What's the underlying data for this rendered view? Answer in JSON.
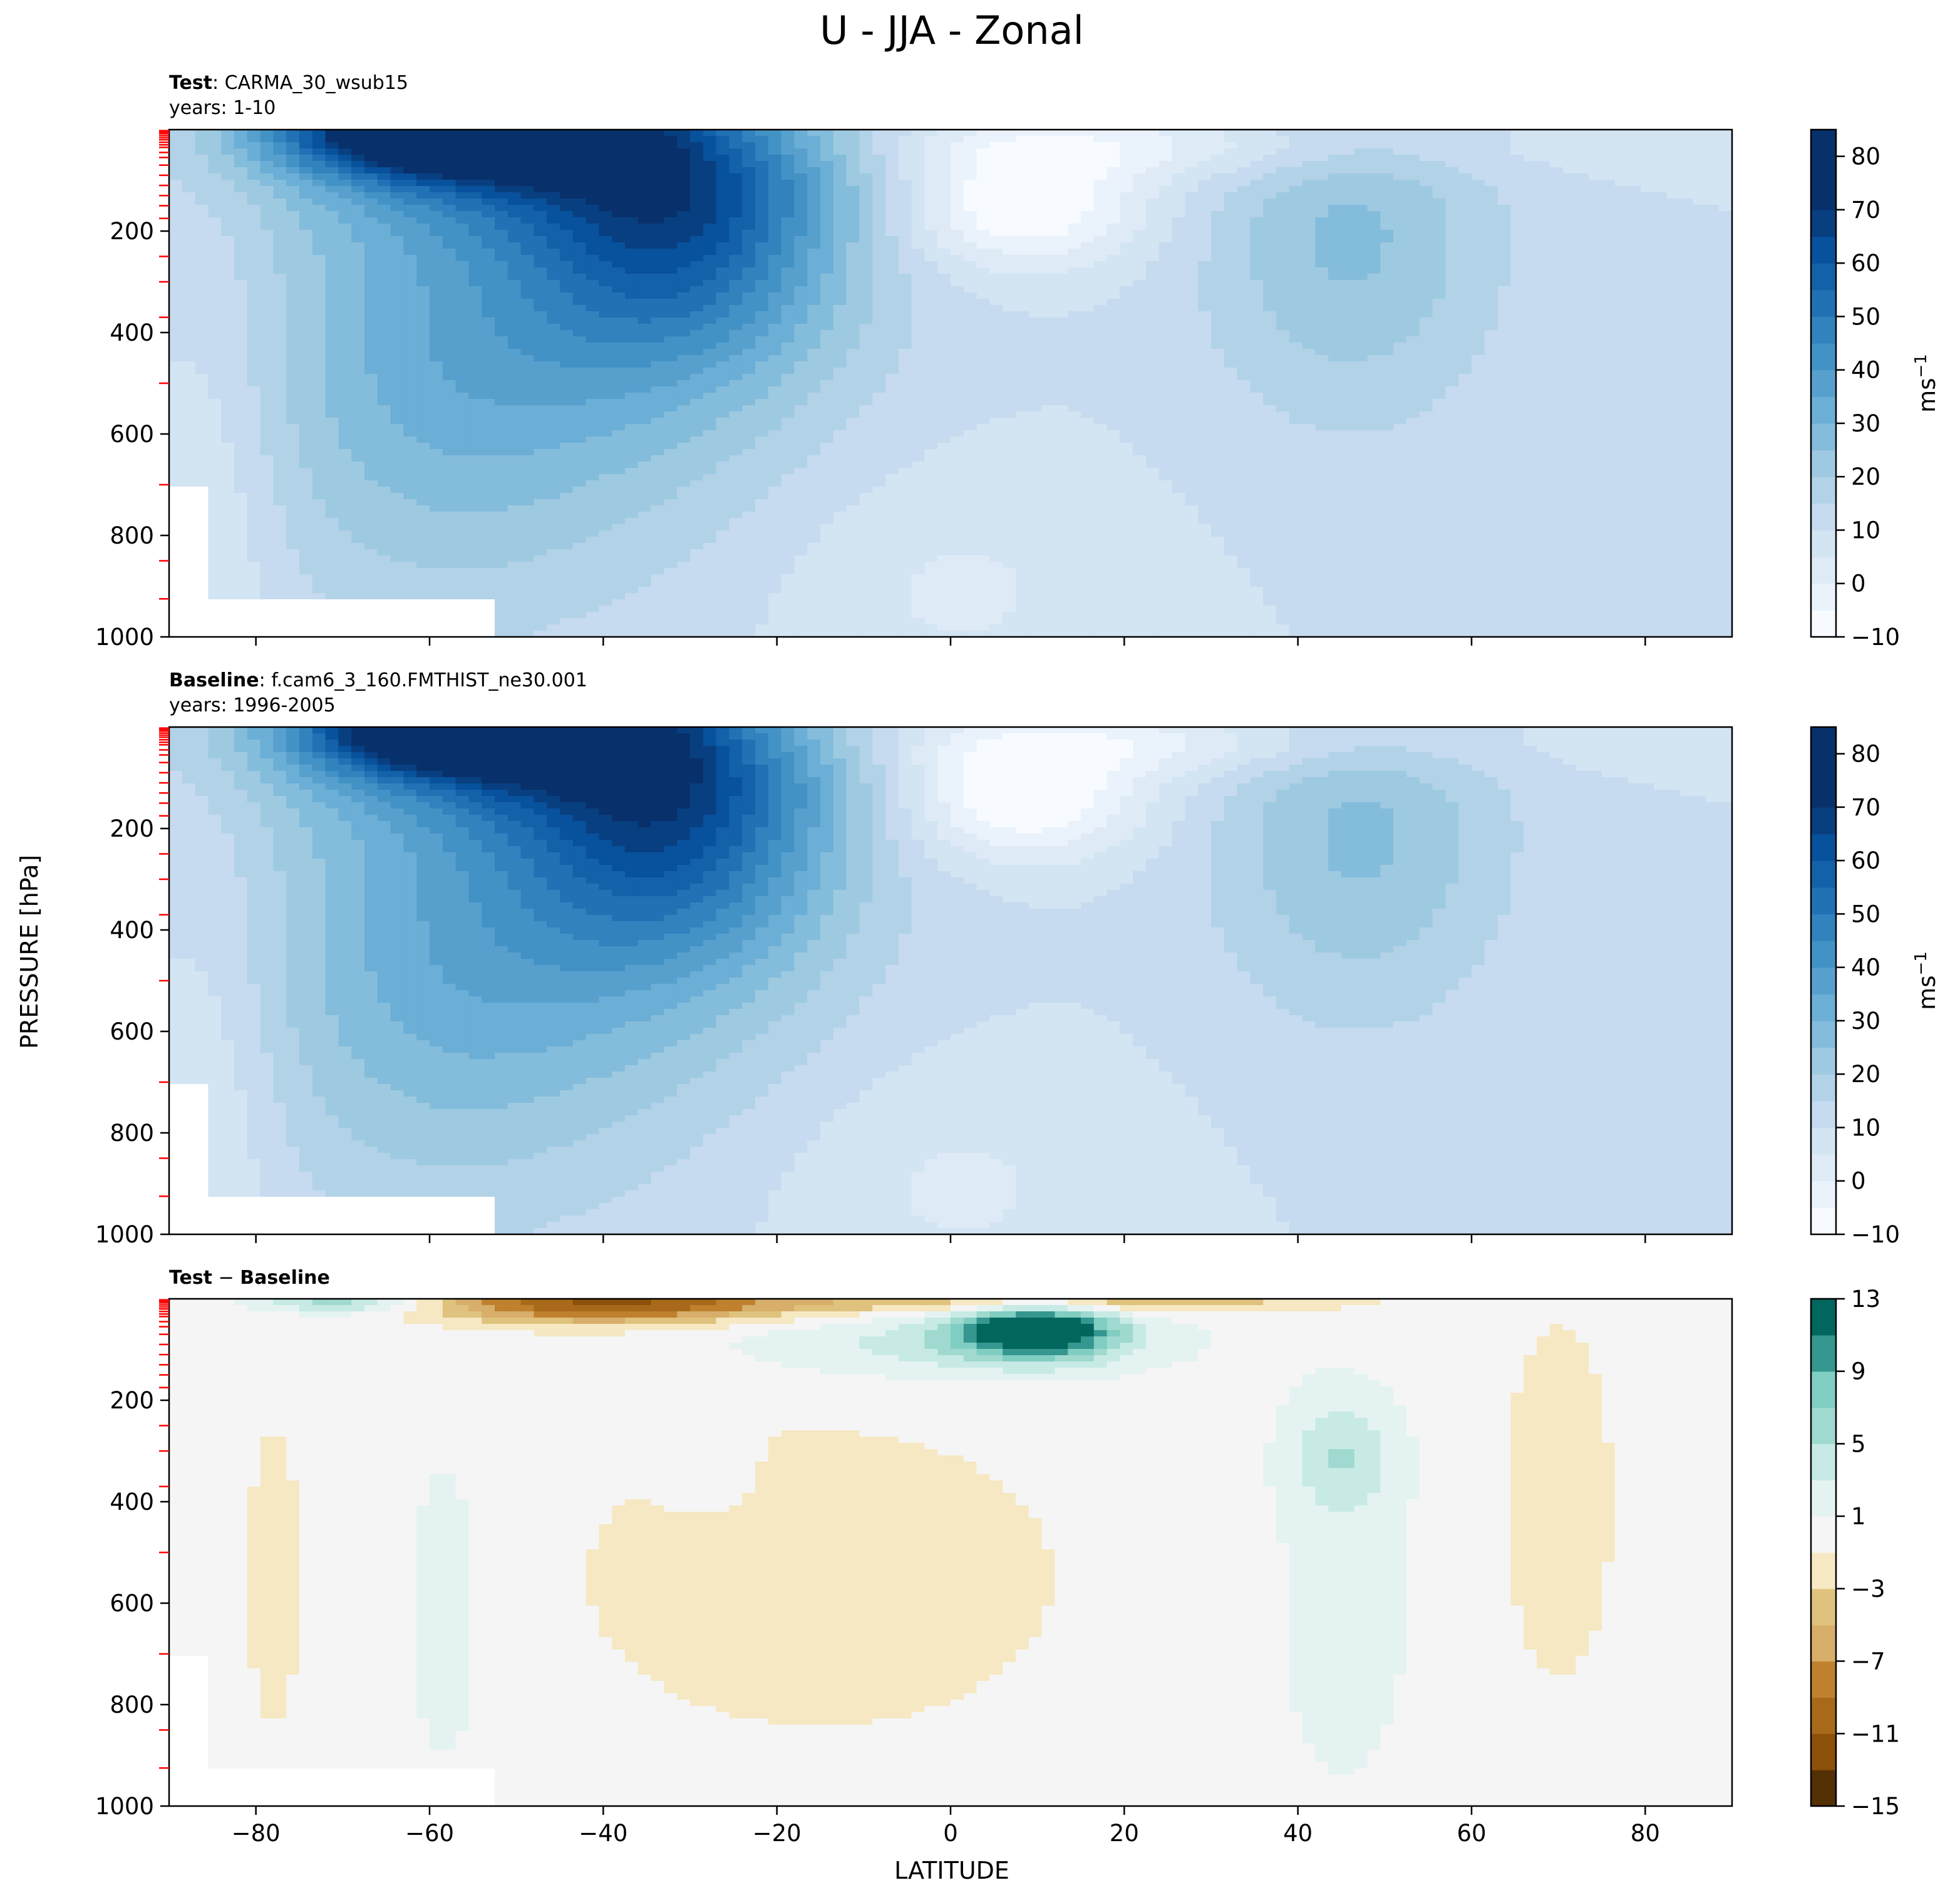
{
  "figure": {
    "title": "U - JJA - Zonal",
    "xlabel": "LATITUDE",
    "ylabel": "PRESSURE [hPa]"
  },
  "colors": {
    "blues": [
      "#f7fbff",
      "#eaf2fb",
      "#deebf7",
      "#d3e4f3",
      "#c6dbef",
      "#b2d2e8",
      "#9ecae1",
      "#84bcdb",
      "#6baed6",
      "#57a0ce",
      "#4292c6",
      "#3282be",
      "#2171b5",
      "#1361a9",
      "#08519c",
      "#083f80",
      "#08306b"
    ],
    "diverging": [
      "#543005",
      "#8c510a",
      "#a86a1a",
      "#bf812d",
      "#d7ae6a",
      "#dfc27d",
      "#f6e8c3",
      "#f5f5f5",
      "#e4f3f1",
      "#c7eae5",
      "#9fd9cf",
      "#80cdc1",
      "#35978f",
      "#01665e",
      "#003c30"
    ],
    "missing": "#ffffff",
    "pressure_tick_marker": "#ff0000"
  },
  "chart_data": [
    {
      "type": "contourf",
      "panel": "test",
      "label_bold": "Test",
      "label_rest": ": CARMA_30_wsub15",
      "years": "years: 1-10",
      "x_range": [
        -90,
        90
      ],
      "y_range": [
        1000,
        0
      ],
      "y_scale": "linear",
      "x_ticks": [
        -80,
        -60,
        -40,
        -20,
        0,
        20,
        40,
        60,
        80
      ],
      "y_ticks": [
        200,
        400,
        600,
        800,
        1000
      ],
      "colorbar": {
        "label": "ms",
        "label_sup": "−1",
        "ticks": [
          "80",
          "70",
          "60",
          "50",
          "40",
          "30",
          "20",
          "10",
          "0",
          "−10"
        ],
        "levels": [
          -10,
          -5,
          0,
          5,
          10,
          15,
          20,
          25,
          30,
          35,
          40,
          45,
          50,
          55,
          60,
          65,
          70,
          75,
          80,
          85
        ]
      },
      "features": {
        "sh_subtropical_jet": {
          "lat": -31,
          "p": 200,
          "max": 42
        },
        "sh_polar_night_jet": {
          "lat": -58,
          "p": 0,
          "max": 85
        },
        "nh_subtropical_jet": {
          "lat": 46,
          "p": 210,
          "max": 22
        },
        "tropical_easterlies": {
          "lat": 8,
          "p": 150,
          "min": -10
        }
      }
    },
    {
      "type": "contourf",
      "panel": "baseline",
      "label_bold": "Baseline",
      "label_rest": ": f.cam6_3_160.FMTHIST_ne30.001",
      "years": "years: 1996-2005",
      "x_range": [
        -90,
        90
      ],
      "y_range": [
        1000,
        0
      ],
      "y_scale": "linear",
      "x_ticks": [
        -80,
        -60,
        -40,
        -20,
        0,
        20,
        40,
        60,
        80
      ],
      "y_ticks": [
        200,
        400,
        600,
        800,
        1000
      ],
      "colorbar": {
        "label": "ms",
        "label_sup": "−1",
        "ticks": [
          "80",
          "70",
          "60",
          "50",
          "40",
          "30",
          "20",
          "10",
          "0",
          "−10"
        ],
        "levels": [
          -10,
          -5,
          0,
          5,
          10,
          15,
          20,
          25,
          30,
          35,
          40,
          45,
          50,
          55,
          60,
          65,
          70,
          75,
          80,
          85
        ]
      },
      "features": {
        "sh_subtropical_jet": {
          "lat": -32,
          "p": 200,
          "max": 42
        },
        "sh_polar_night_jet": {
          "lat": -55,
          "p": 0,
          "max": 85
        },
        "nh_subtropical_jet": {
          "lat": 47,
          "p": 200,
          "max": 22
        },
        "tropical_easterlies": {
          "lat": 8,
          "p": 140,
          "min": -10
        }
      }
    },
    {
      "type": "contourf",
      "panel": "difference",
      "label_bold": "Test",
      "label_mid": " − ",
      "label_bold2": "Baseline",
      "x_range": [
        -90,
        90
      ],
      "y_range": [
        1000,
        0
      ],
      "y_scale": "linear",
      "x_ticks": [
        -80,
        -60,
        -40,
        -20,
        0,
        20,
        40,
        60,
        80
      ],
      "y_ticks": [
        200,
        400,
        600,
        800,
        1000
      ],
      "colorbar": {
        "label": "",
        "ticks": [
          "13",
          "9",
          "5",
          "1",
          "−3",
          "−7",
          "−11",
          "−15"
        ],
        "levels": [
          -15,
          -13,
          -11,
          -9,
          -7,
          -5,
          -3,
          -1,
          1,
          3,
          5,
          7,
          9,
          11,
          13
        ]
      },
      "features": {
        "tropical_positive_max": {
          "lat": 10,
          "p": 60,
          "max": 13
        },
        "upper_negative_band": {
          "lat": -40,
          "p": 10,
          "min": -9
        },
        "nh_positive": {
          "lat": 45,
          "p": 300,
          "max": 5
        }
      }
    }
  ]
}
